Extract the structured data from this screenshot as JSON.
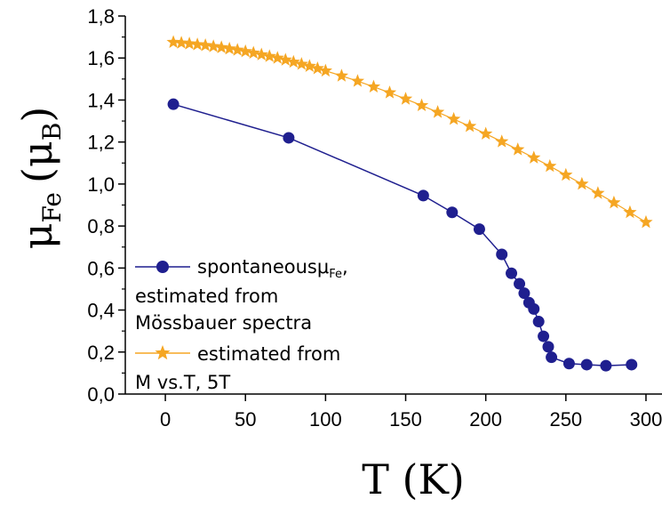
{
  "chart_data": {
    "type": "line",
    "xlabel": "T (K)",
    "ylabel_main": "μ",
    "ylabel_sub": "Fe",
    "ylabel_paren_open": "(",
    "ylabel_unit_main": "μ",
    "ylabel_unit_sub": "B",
    "ylabel_paren_close": ")",
    "xlim": [
      -25,
      310
    ],
    "ylim": [
      0.0,
      1.8
    ],
    "x_ticks": [
      0,
      50,
      100,
      150,
      200,
      250,
      300
    ],
    "x_tick_labels": [
      "0",
      "50",
      "100",
      "150",
      "200",
      "250",
      "300"
    ],
    "y_ticks": [
      0.0,
      0.2,
      0.4,
      0.6,
      0.8,
      1.0,
      1.2,
      1.4,
      1.6,
      1.8
    ],
    "y_tick_labels": [
      "0,0",
      "0,2",
      "0,4",
      "0,6",
      "0,8",
      "1,0",
      "1,2",
      "1,4",
      "1,6",
      "1,8"
    ],
    "grid": false,
    "legend_position": "bottom-left",
    "series": [
      {
        "name_line1": "spontaneous",
        "name_symbol_main": "μ",
        "name_symbol_sub": "Fe",
        "name_symbol_comma": ",",
        "name_line2": "estimated from",
        "name_line3": "Mössbauer spectra",
        "marker": "circle",
        "color": "#1f1f8f",
        "x": [
          5,
          77,
          161,
          179,
          196,
          210,
          216,
          221,
          224,
          227,
          230,
          233,
          236,
          239,
          241,
          252,
          263,
          275,
          291
        ],
        "y": [
          1.38,
          1.22,
          0.945,
          0.865,
          0.785,
          0.665,
          0.575,
          0.525,
          0.48,
          0.435,
          0.405,
          0.345,
          0.275,
          0.225,
          0.175,
          0.145,
          0.14,
          0.135,
          0.14
        ]
      },
      {
        "name_line1": "estimated from",
        "name_line2": "M vs.T, 5T",
        "marker": "star",
        "color": "#f5a623",
        "x": [
          5,
          10,
          15,
          20,
          25,
          30,
          35,
          40,
          45,
          50,
          55,
          60,
          65,
          70,
          75,
          80,
          85,
          90,
          95,
          100,
          110,
          120,
          130,
          140,
          150,
          160,
          170,
          180,
          190,
          200,
          210,
          220,
          230,
          240,
          250,
          260,
          270,
          280,
          290,
          300
        ],
        "y": [
          1.675,
          1.672,
          1.668,
          1.664,
          1.66,
          1.655,
          1.65,
          1.644,
          1.638,
          1.631,
          1.624,
          1.616,
          1.608,
          1.6,
          1.591,
          1.581,
          1.571,
          1.561,
          1.55,
          1.539,
          1.515,
          1.49,
          1.463,
          1.435,
          1.405,
          1.374,
          1.342,
          1.309,
          1.275,
          1.239,
          1.202,
          1.164,
          1.125,
          1.085,
          1.043,
          1.0,
          0.956,
          0.911,
          0.865,
          0.818
        ]
      }
    ]
  }
}
